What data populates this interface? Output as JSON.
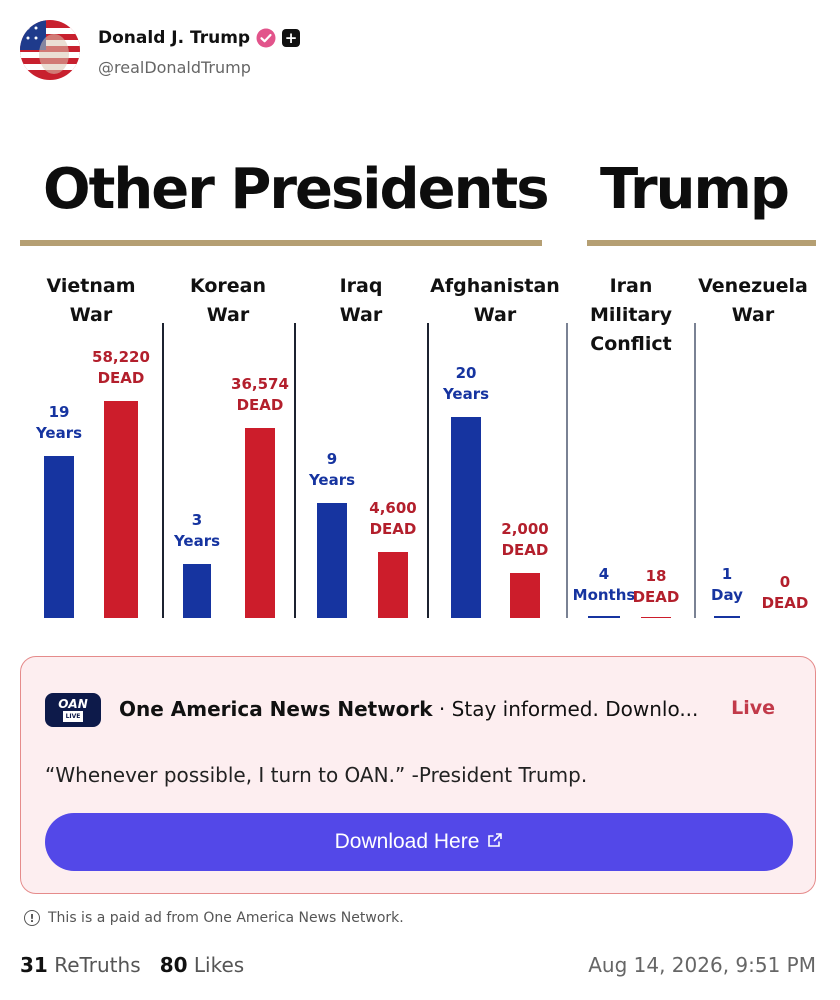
{
  "author": {
    "name": "Donald J. Trump",
    "handle": "@realDonaldTrump"
  },
  "infographic": {
    "title_left": "Other Presidents",
    "title_right": "Trump",
    "columns": [
      {
        "label": "Vietnam\nWar",
        "years": "19\nYears",
        "dead": "58,220\nDEAD"
      },
      {
        "label": "Korean\nWar",
        "years": "3\nYears",
        "dead": "36,574\nDEAD"
      },
      {
        "label": "Iraq\nWar",
        "years": "9\nYears",
        "dead": "4,600\nDEAD"
      },
      {
        "label": "Afghanistan\nWar",
        "years": "20\nYears",
        "dead": "2,000\nDEAD"
      },
      {
        "label": "Iran\nMilitary\nConflict",
        "years": "4\nMonths",
        "dead": "18\nDEAD"
      },
      {
        "label": "Venezuela\nWar",
        "years": "1\nDay",
        "dead": "0\nDEAD"
      }
    ]
  },
  "chart_data": {
    "type": "bar",
    "categories": [
      "Vietnam War",
      "Korean War",
      "Iraq War",
      "Afghanistan War",
      "Iran Military Conflict",
      "Venezuela War"
    ],
    "series": [
      {
        "values": [
          19,
          3,
          9,
          20,
          0.33,
          0.003
        ]
      },
      {
        "values": [
          58220,
          36574,
          4600,
          2000,
          18,
          0
        ]
      }
    ]
  },
  "ad": {
    "advertiser": "One America News Network",
    "tagline": " · Stay informed. Downlo...",
    "live_label": "Live",
    "quote": "“Whenever possible, I turn to OAN.” -President Trump.",
    "button_label": "Download Here",
    "logo_text": "OAN",
    "logo_sub": "LIVE"
  },
  "footer": {
    "paid_note": "This is a paid ad from One America News Network.",
    "retruths_count": "31",
    "retruths_label": "ReTruths",
    "likes_count": "80",
    "likes_label": "Likes",
    "timestamp": "Aug 14, 2026, 9:51 PM"
  },
  "colors": {
    "blue": "#1634a0",
    "red": "#cc1d2b",
    "rule": "#b59f73",
    "button": "#5348e8",
    "ad_bg": "#fdeef0"
  }
}
